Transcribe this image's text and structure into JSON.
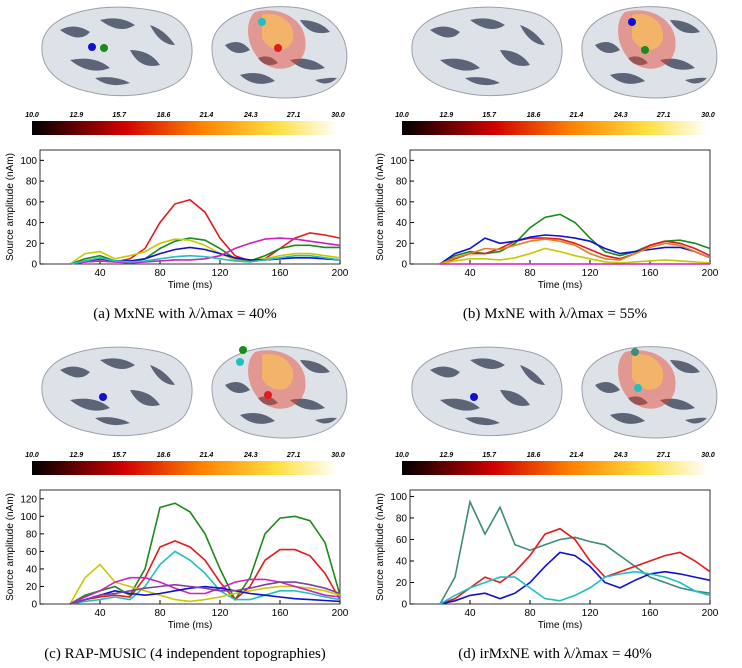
{
  "chart_data": [
    {
      "type": "line",
      "caption": "(a) MxNE with λ/λmax = 40%",
      "x_label": "Time (ms)",
      "y_label": "Source amplitude (nAm)",
      "x": [
        20,
        30,
        40,
        50,
        60,
        70,
        80,
        90,
        100,
        110,
        120,
        130,
        140,
        150,
        160,
        170,
        180,
        190,
        200
      ],
      "xlim": [
        0,
        200
      ],
      "xticks": [
        40,
        80,
        120,
        160,
        200
      ],
      "ylim": [
        0,
        110
      ],
      "yticks": [
        0,
        20,
        40,
        60,
        80,
        100
      ],
      "colorbar_ticks": [
        {
          "value": 10,
          "label": "10.0"
        },
        12.9,
        15.7,
        18.6,
        21.4,
        24.3,
        27.1,
        {
          "value": 30,
          "label": "30.0"
        }
      ],
      "series": [
        {
          "color": "#e41a1c",
          "values": [
            0,
            2,
            3,
            2,
            5,
            15,
            40,
            58,
            62,
            50,
            25,
            8,
            3,
            5,
            15,
            25,
            30,
            28,
            25
          ]
        },
        {
          "color": "#1a8a1a",
          "values": [
            0,
            5,
            8,
            3,
            2,
            5,
            15,
            22,
            25,
            23,
            15,
            5,
            3,
            8,
            15,
            18,
            18,
            16,
            16
          ]
        },
        {
          "color": "#c8c800",
          "values": [
            0,
            10,
            12,
            5,
            8,
            12,
            20,
            24,
            23,
            18,
            10,
            4,
            2,
            5,
            8,
            10,
            10,
            8,
            6
          ]
        },
        {
          "color": "#1010d0",
          "values": [
            0,
            3,
            5,
            3,
            3,
            5,
            10,
            14,
            16,
            14,
            10,
            6,
            4,
            4,
            5,
            6,
            6,
            5,
            4
          ]
        },
        {
          "color": "#d020c0",
          "values": [
            0,
            2,
            3,
            2,
            1,
            2,
            3,
            4,
            4,
            5,
            8,
            15,
            20,
            24,
            25,
            24,
            22,
            20,
            18
          ]
        },
        {
          "color": "#20c0c0",
          "values": [
            0,
            3,
            6,
            3,
            2,
            3,
            5,
            7,
            8,
            7,
            5,
            3,
            2,
            4,
            6,
            8,
            8,
            6,
            4
          ]
        }
      ]
    },
    {
      "type": "line",
      "caption": "(b) MxNE with λ/λmax = 55%",
      "x_label": "Time (ms)",
      "y_label": "Source amplitude (nAm)",
      "x": [
        20,
        30,
        40,
        50,
        60,
        70,
        80,
        90,
        100,
        110,
        120,
        130,
        140,
        150,
        160,
        170,
        180,
        190,
        200
      ],
      "xlim": [
        0,
        200
      ],
      "xticks": [
        40,
        80,
        120,
        160,
        200
      ],
      "ylim": [
        0,
        110
      ],
      "yticks": [
        0,
        20,
        40,
        60,
        80,
        100
      ],
      "colorbar_ticks": [
        {
          "value": 10,
          "label": "10.0"
        },
        12.9,
        15.7,
        18.6,
        21.4,
        24.3,
        27.1,
        {
          "value": 30,
          "label": "30.0"
        }
      ],
      "series": [
        {
          "color": "#1a8a1a",
          "values": [
            0,
            8,
            12,
            10,
            12,
            20,
            35,
            45,
            48,
            40,
            25,
            12,
            8,
            12,
            18,
            22,
            23,
            20,
            15
          ]
        },
        {
          "color": "#e41a1c",
          "values": [
            0,
            5,
            10,
            10,
            15,
            22,
            25,
            25,
            24,
            20,
            14,
            8,
            5,
            10,
            18,
            22,
            20,
            15,
            8
          ]
        },
        {
          "color": "#1010d0",
          "values": [
            0,
            10,
            15,
            25,
            20,
            22,
            26,
            28,
            27,
            25,
            22,
            15,
            10,
            12,
            14,
            16,
            16,
            12,
            6
          ]
        },
        {
          "color": "#e08020",
          "values": [
            0,
            6,
            10,
            15,
            14,
            18,
            22,
            24,
            22,
            18,
            10,
            5,
            4,
            10,
            16,
            20,
            18,
            12,
            6
          ]
        },
        {
          "color": "#c8c800",
          "values": [
            0,
            3,
            5,
            5,
            4,
            6,
            10,
            15,
            12,
            8,
            5,
            2,
            1,
            2,
            3,
            4,
            3,
            2,
            1
          ]
        },
        {
          "color": "#d020c0",
          "values": [
            0,
            0,
            0,
            0,
            0,
            0,
            0,
            0,
            0,
            0,
            0,
            0,
            0,
            0,
            0,
            0,
            0,
            0,
            0
          ]
        }
      ]
    },
    {
      "type": "line",
      "caption": "(c) RAP-MUSIC (4 independent topographies)",
      "x_label": "Time (ms)",
      "y_label": "Source amplitude (nAm)",
      "x": [
        20,
        30,
        40,
        50,
        60,
        70,
        80,
        90,
        100,
        110,
        120,
        130,
        140,
        150,
        160,
        170,
        180,
        190,
        200
      ],
      "xlim": [
        0,
        200
      ],
      "xticks": [
        40,
        80,
        120,
        160,
        200
      ],
      "ylim": [
        0,
        130
      ],
      "yticks": [
        0,
        20,
        40,
        60,
        80,
        100,
        120
      ],
      "colorbar_ticks": [
        {
          "value": 10,
          "label": "10.0"
        },
        12.9,
        15.7,
        18.6,
        21.4,
        24.3,
        27.1,
        {
          "value": 30,
          "label": "30.0"
        }
      ],
      "series": [
        {
          "color": "#1a8a1a",
          "values": [
            0,
            10,
            15,
            20,
            10,
            40,
            110,
            115,
            105,
            80,
            40,
            5,
            30,
            80,
            98,
            100,
            95,
            70,
            10
          ]
        },
        {
          "color": "#e41a1c",
          "values": [
            0,
            5,
            8,
            10,
            8,
            30,
            65,
            72,
            65,
            50,
            25,
            5,
            20,
            50,
            62,
            62,
            55,
            35,
            5
          ]
        },
        {
          "color": "#20c0c0",
          "values": [
            0,
            3,
            5,
            8,
            5,
            20,
            45,
            60,
            50,
            35,
            15,
            5,
            5,
            10,
            15,
            15,
            12,
            8,
            5
          ]
        },
        {
          "color": "#c8c800",
          "values": [
            0,
            30,
            45,
            25,
            20,
            15,
            10,
            5,
            3,
            5,
            8,
            12,
            15,
            18,
            20,
            20,
            18,
            15,
            10
          ]
        },
        {
          "color": "#d020c0",
          "values": [
            0,
            8,
            15,
            25,
            30,
            30,
            25,
            18,
            12,
            12,
            18,
            25,
            28,
            28,
            25,
            20,
            15,
            10,
            8
          ]
        },
        {
          "color": "#1010d0",
          "values": [
            0,
            5,
            10,
            15,
            12,
            10,
            12,
            15,
            18,
            20,
            18,
            15,
            12,
            10,
            8,
            6,
            5,
            4,
            3
          ]
        },
        {
          "color": "#8040a0",
          "values": [
            0,
            5,
            10,
            12,
            15,
            18,
            20,
            22,
            20,
            18,
            15,
            15,
            18,
            22,
            25,
            25,
            22,
            18,
            12
          ]
        }
      ]
    },
    {
      "type": "line",
      "caption": "(d) irMxNE with λ/λmax = 40%",
      "x_label": "Time (ms)",
      "y_label": "Source amplitude (nAm)",
      "x": [
        20,
        30,
        40,
        50,
        60,
        70,
        80,
        90,
        100,
        110,
        120,
        130,
        140,
        150,
        160,
        170,
        180,
        190,
        200
      ],
      "xlim": [
        0,
        200
      ],
      "xticks": [
        40,
        80,
        120,
        160,
        200
      ],
      "ylim": [
        0,
        106
      ],
      "yticks": [
        0,
        20,
        40,
        60,
        80,
        100
      ],
      "colorbar_ticks": [
        {
          "value": 10,
          "label": "10.0"
        },
        12.9,
        15.7,
        18.6,
        21.4,
        24.3,
        27.1,
        {
          "value": 30,
          "label": "30.0"
        }
      ],
      "series": [
        {
          "color": "#3f8a78",
          "values": [
            0,
            25,
            95,
            65,
            90,
            55,
            50,
            55,
            60,
            62,
            58,
            55,
            45,
            35,
            25,
            20,
            15,
            12,
            10
          ]
        },
        {
          "color": "#e41a1c",
          "values": [
            0,
            5,
            15,
            25,
            20,
            30,
            45,
            65,
            70,
            60,
            40,
            25,
            30,
            35,
            40,
            45,
            48,
            40,
            30
          ]
        },
        {
          "color": "#1010d0",
          "values": [
            0,
            3,
            8,
            10,
            5,
            10,
            20,
            35,
            48,
            45,
            35,
            20,
            15,
            22,
            28,
            30,
            28,
            25,
            22
          ]
        },
        {
          "color": "#20c0c0",
          "values": [
            0,
            8,
            15,
            20,
            25,
            25,
            15,
            5,
            3,
            8,
            15,
            25,
            28,
            30,
            28,
            25,
            20,
            12,
            8
          ]
        }
      ]
    }
  ]
}
